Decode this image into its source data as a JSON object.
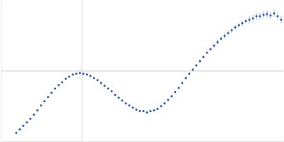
{
  "chart_data": {
    "type": "scatter",
    "x": [
      -0.093,
      -0.088,
      -0.083,
      -0.078,
      -0.073,
      -0.068,
      -0.063,
      -0.058,
      -0.053,
      -0.048,
      -0.043,
      -0.038,
      -0.033,
      -0.028,
      -0.023,
      -0.018,
      -0.013,
      -0.008,
      -0.003,
      0.002,
      0.007,
      0.012,
      0.017,
      0.022,
      0.027,
      0.032,
      0.037,
      0.042,
      0.047,
      0.052,
      0.057,
      0.062,
      0.067,
      0.072,
      0.077,
      0.082,
      0.087,
      0.092,
      0.097,
      0.102,
      0.107,
      0.112,
      0.117,
      0.122,
      0.127,
      0.132,
      0.137,
      0.142,
      0.147,
      0.152,
      0.157,
      0.162,
      0.167,
      0.172,
      0.177,
      0.182,
      0.187,
      0.192,
      0.197,
      0.202,
      0.207,
      0.212,
      0.217,
      0.222,
      0.227,
      0.232,
      0.237,
      0.242,
      0.247,
      0.252,
      0.257,
      0.262,
      0.267,
      0.272,
      0.277,
      0.282
    ],
    "y": [
      -0.88,
      -0.83,
      -0.78,
      -0.73,
      -0.68,
      -0.62,
      -0.56,
      -0.49,
      -0.43,
      -0.37,
      -0.31,
      -0.25,
      -0.2,
      -0.16,
      -0.11,
      -0.08,
      -0.05,
      -0.04,
      -0.03,
      -0.04,
      -0.05,
      -0.07,
      -0.1,
      -0.13,
      -0.17,
      -0.21,
      -0.25,
      -0.29,
      -0.34,
      -0.38,
      -0.42,
      -0.46,
      -0.49,
      -0.52,
      -0.55,
      -0.57,
      -0.57,
      -0.59,
      -0.57,
      -0.56,
      -0.54,
      -0.5,
      -0.46,
      -0.41,
      -0.36,
      -0.3,
      -0.24,
      -0.17,
      -0.1,
      -0.04,
      0.02,
      0.08,
      0.14,
      0.2,
      0.26,
      0.31,
      0.36,
      0.41,
      0.46,
      0.5,
      0.54,
      0.58,
      0.62,
      0.65,
      0.68,
      0.71,
      0.73,
      0.75,
      0.78,
      0.78,
      0.8,
      0.81,
      0.79,
      0.82,
      0.78,
      0.73
    ],
    "error": [
      0.005,
      0.005,
      0.005,
      0.005,
      0.005,
      0.005,
      0.005,
      0.005,
      0.005,
      0.005,
      0.005,
      0.005,
      0.005,
      0.005,
      0.005,
      0.005,
      0.005,
      0.005,
      0.005,
      0.005,
      0.01,
      0.01,
      0.01,
      0.01,
      0.01,
      0.01,
      0.01,
      0.01,
      0.01,
      0.01,
      0.01,
      0.01,
      0.01,
      0.01,
      0.01,
      0.01,
      0.01,
      0.01,
      0.01,
      0.01,
      0.02,
      0.02,
      0.02,
      0.02,
      0.02,
      0.02,
      0.02,
      0.02,
      0.02,
      0.02,
      0.02,
      0.02,
      0.02,
      0.02,
      0.02,
      0.02,
      0.035,
      0.035,
      0.035,
      0.035,
      0.035,
      0.035,
      0.035,
      0.035,
      0.035,
      0.035,
      0.05,
      0.05,
      0.05,
      0.05,
      0.05,
      0.05,
      0.05,
      0.05,
      0.05,
      0.05
    ],
    "color": "#3a66b8",
    "marker": "circle",
    "xlim": [
      -0.115,
      0.285
    ],
    "xticks": [
      0
    ],
    "ylim": [
      -1,
      1
    ],
    "yticks": [
      0
    ],
    "grid": true,
    "tick_labels": false
  }
}
